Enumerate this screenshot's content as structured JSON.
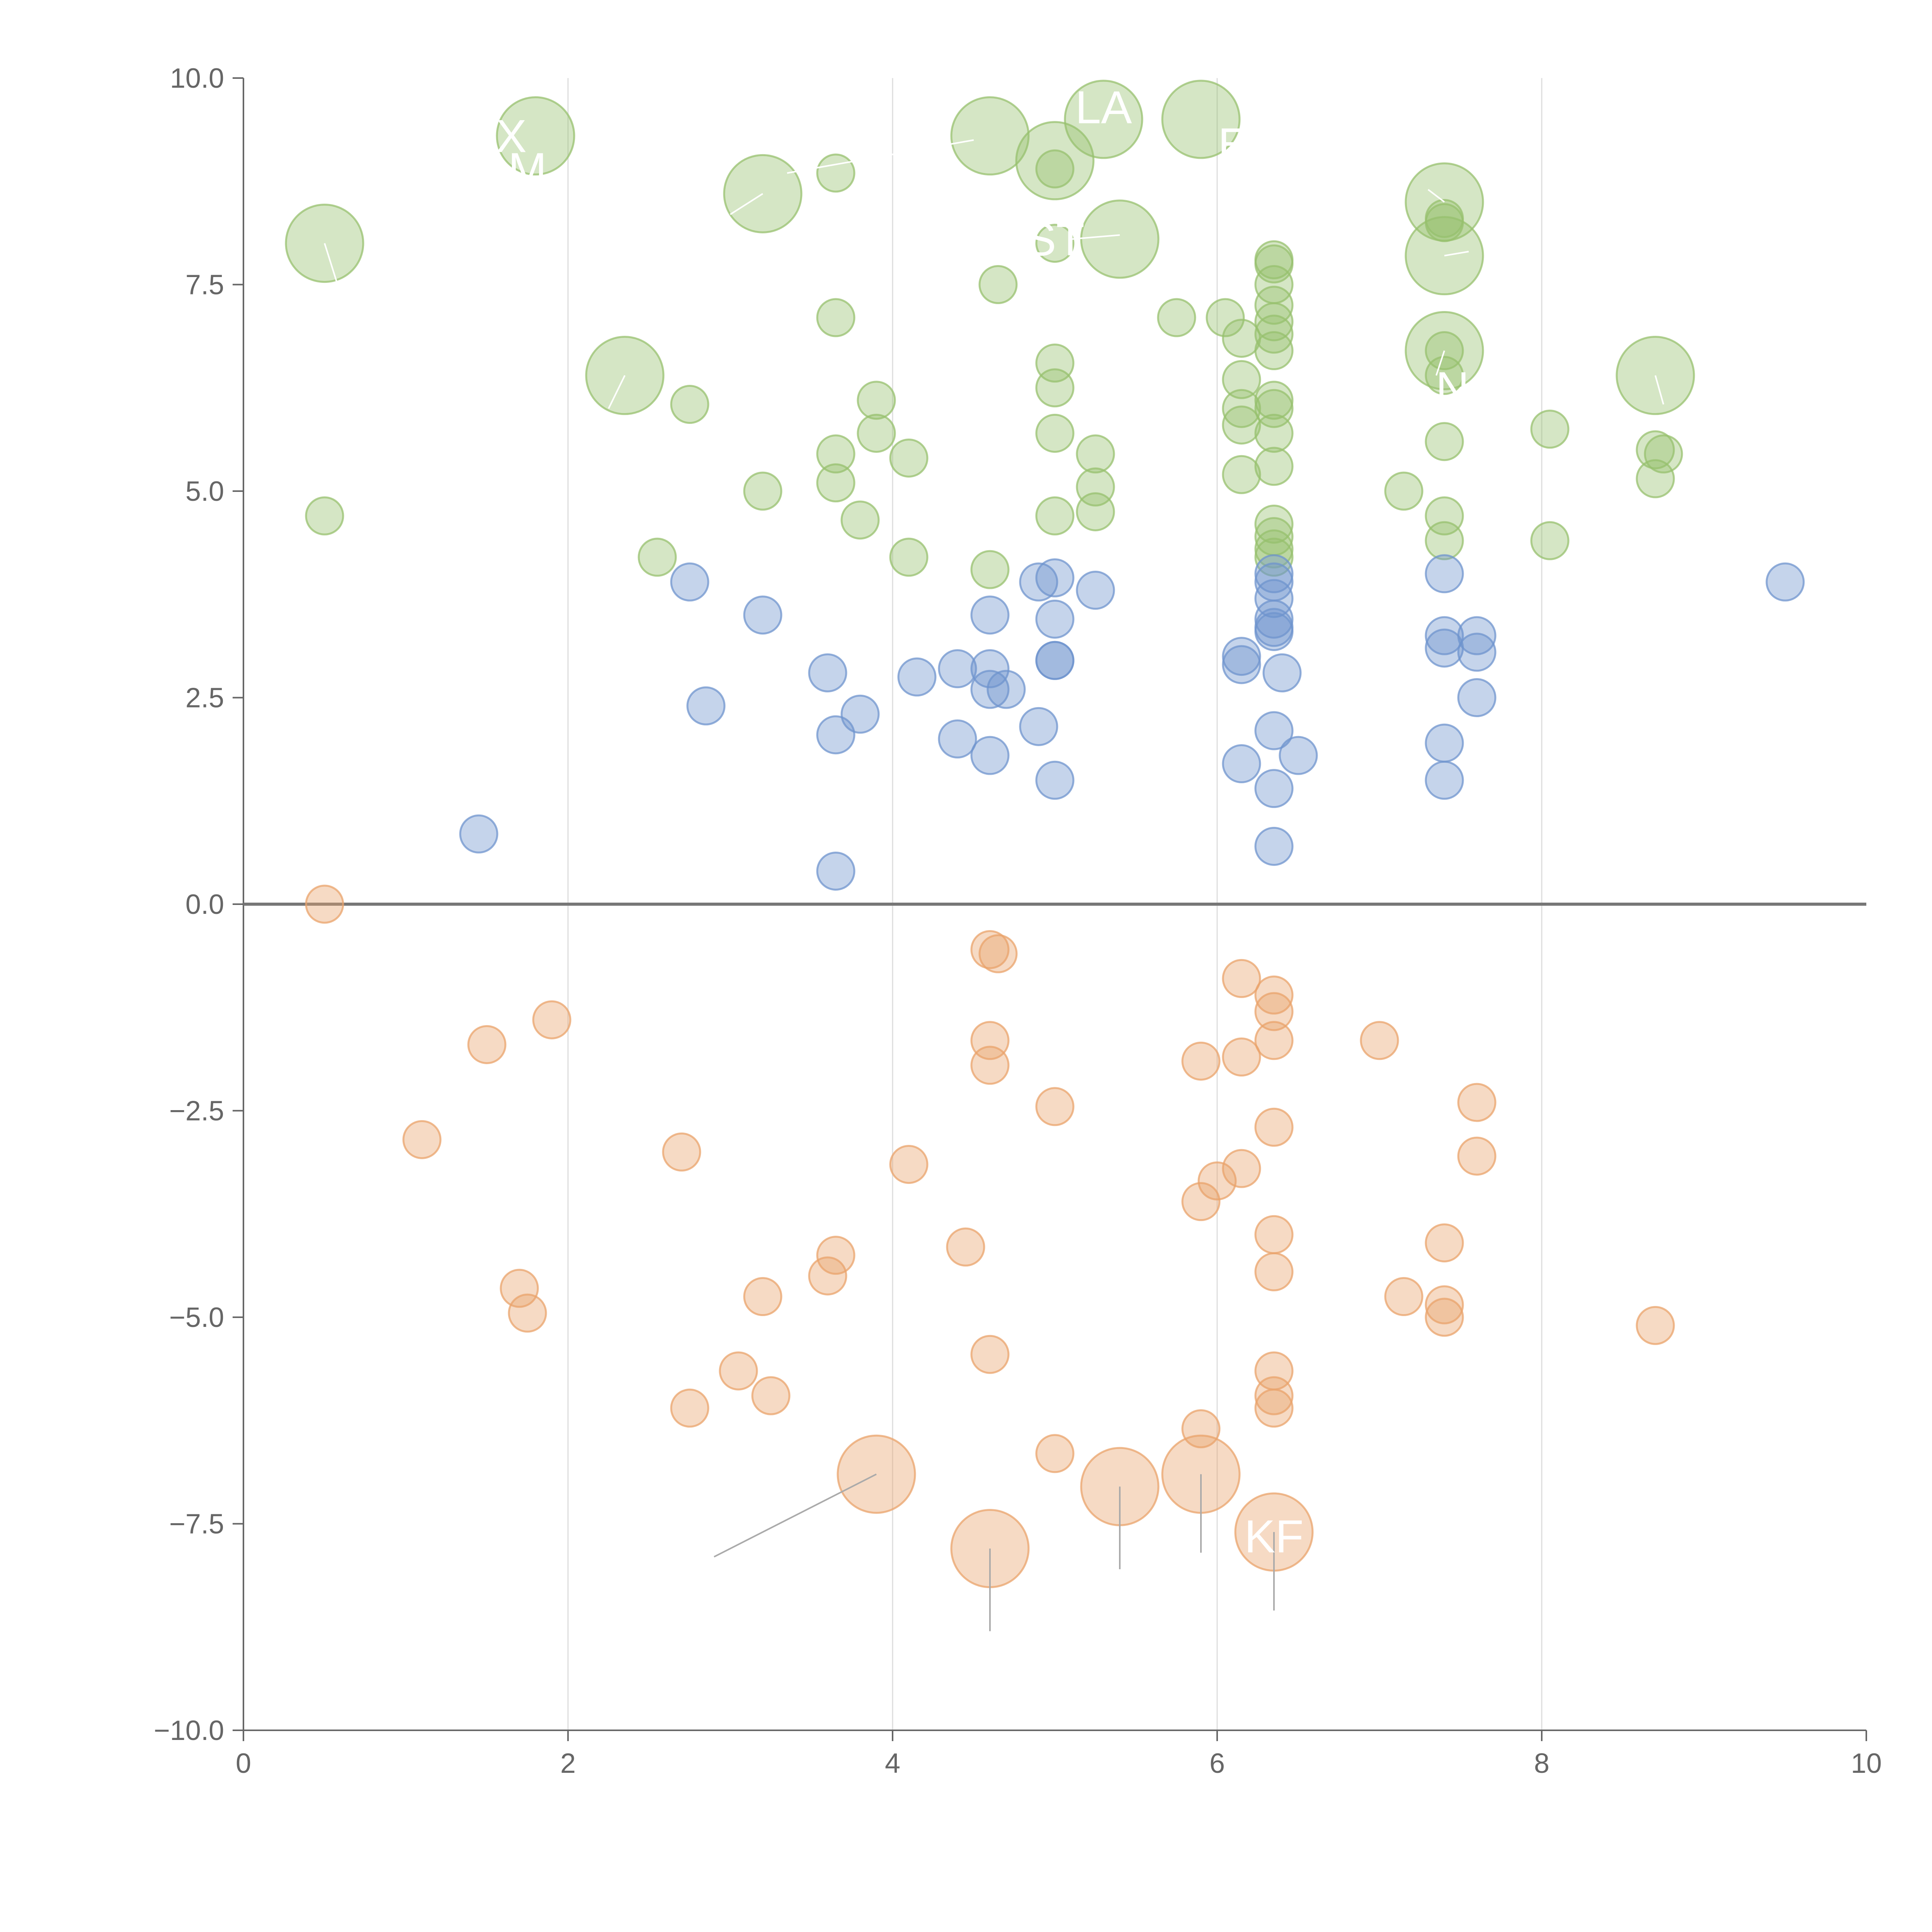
{
  "chart_data": {
    "type": "scatter",
    "title": "",
    "xlabel": "",
    "ylabel": "",
    "xlim": [
      0,
      10
    ],
    "ylim": [
      -10,
      10
    ],
    "x_ticks": [
      "0",
      "2",
      "4",
      "6",
      "8",
      "10"
    ],
    "y_ticks": [
      "10.0",
      "7.5",
      "5.0",
      "2.5",
      "0.0",
      "−2.5",
      "−5.0",
      "−7.5",
      "−10.0"
    ],
    "grid": "vertical",
    "zero_line": true,
    "colors": {
      "green": "#97c06e",
      "blue": "#6f94cd",
      "orange": "#e9a36b",
      "axis": "#666666",
      "grid": "#dddddd",
      "zero": "#777777"
    },
    "point_labels": [
      "X",
      "M",
      "LA",
      "E",
      "ST",
      "N",
      "KF"
    ],
    "series": [
      {
        "name": "green",
        "points": [
          [
            0.5,
            8.0,
            1
          ],
          [
            1.8,
            9.3,
            1
          ],
          [
            3.2,
            8.6,
            1
          ],
          [
            4.6,
            9.3,
            1
          ],
          [
            5.0,
            9.0,
            1
          ],
          [
            5.3,
            9.5,
            1
          ],
          [
            5.9,
            9.5,
            1
          ],
          [
            5.4,
            8.05,
            1
          ],
          [
            7.4,
            8.5,
            1
          ],
          [
            7.4,
            7.85,
            1
          ],
          [
            7.4,
            6.7,
            1
          ],
          [
            2.35,
            6.4,
            1
          ],
          [
            8.7,
            6.4,
            1
          ],
          [
            3.65,
            8.85,
            0
          ],
          [
            5.0,
            8.9,
            0
          ],
          [
            5.0,
            8.0,
            0
          ],
          [
            4.65,
            7.5,
            0
          ],
          [
            3.65,
            7.1,
            0
          ],
          [
            5.75,
            7.1,
            0
          ],
          [
            6.05,
            7.1,
            0
          ],
          [
            6.15,
            6.85,
            0
          ],
          [
            6.35,
            7.8,
            0
          ],
          [
            6.35,
            7.75,
            0
          ],
          [
            6.35,
            7.5,
            0
          ],
          [
            6.35,
            7.25,
            0
          ],
          [
            6.35,
            7.05,
            0
          ],
          [
            6.35,
            6.9,
            0
          ],
          [
            6.35,
            6.7,
            0
          ],
          [
            6.35,
            6.1,
            0
          ],
          [
            6.35,
            6.0,
            0
          ],
          [
            6.35,
            5.7,
            0
          ],
          [
            6.35,
            5.3,
            0
          ],
          [
            6.35,
            4.6,
            0
          ],
          [
            6.35,
            4.45,
            0
          ],
          [
            6.35,
            4.3,
            0
          ],
          [
            6.35,
            4.2,
            0
          ],
          [
            6.15,
            6.35,
            0
          ],
          [
            6.15,
            6.0,
            0
          ],
          [
            6.15,
            5.8,
            0
          ],
          [
            6.15,
            5.2,
            0
          ],
          [
            5.0,
            6.55,
            0
          ],
          [
            5.0,
            6.25,
            0
          ],
          [
            5.0,
            5.7,
            0
          ],
          [
            5.0,
            4.7,
            0
          ],
          [
            5.25,
            5.45,
            0
          ],
          [
            5.25,
            5.05,
            0
          ],
          [
            5.25,
            4.75,
            0
          ],
          [
            2.75,
            6.05,
            0
          ],
          [
            3.9,
            6.1,
            0
          ],
          [
            3.9,
            5.7,
            0
          ],
          [
            3.65,
            5.45,
            0
          ],
          [
            3.65,
            5.1,
            0
          ],
          [
            4.1,
            5.4,
            0
          ],
          [
            3.2,
            5.0,
            0
          ],
          [
            3.8,
            4.65,
            0
          ],
          [
            2.55,
            4.2,
            0
          ],
          [
            4.1,
            4.2,
            0
          ],
          [
            4.6,
            4.05,
            0
          ],
          [
            0.5,
            4.7,
            0
          ],
          [
            7.4,
            8.3,
            0
          ],
          [
            7.4,
            8.25,
            0
          ],
          [
            7.4,
            6.7,
            0
          ],
          [
            7.4,
            6.4,
            0
          ],
          [
            7.4,
            5.6,
            0
          ],
          [
            7.4,
            4.7,
            0
          ],
          [
            7.4,
            4.4,
            0
          ],
          [
            7.15,
            5.0,
            0
          ],
          [
            8.05,
            5.75,
            0
          ],
          [
            8.05,
            4.4,
            0
          ],
          [
            8.7,
            5.5,
            0
          ],
          [
            8.75,
            5.45,
            0
          ],
          [
            8.7,
            5.15,
            0
          ]
        ]
      },
      {
        "name": "blue",
        "points": [
          [
            1.45,
            0.85,
            0
          ],
          [
            2.75,
            3.9,
            0
          ],
          [
            2.85,
            2.4,
            0
          ],
          [
            3.2,
            3.5,
            0
          ],
          [
            3.6,
            2.8,
            0
          ],
          [
            3.65,
            2.05,
            0
          ],
          [
            3.8,
            2.3,
            0
          ],
          [
            3.65,
            0.4,
            0
          ],
          [
            4.15,
            2.75,
            0
          ],
          [
            4.4,
            2.85,
            0
          ],
          [
            4.4,
            2.0,
            0
          ],
          [
            4.6,
            3.5,
            0
          ],
          [
            4.6,
            2.85,
            0
          ],
          [
            4.6,
            2.6,
            0
          ],
          [
            4.6,
            1.8,
            0
          ],
          [
            4.7,
            2.6,
            0
          ],
          [
            4.9,
            3.9,
            0
          ],
          [
            4.9,
            2.15,
            0
          ],
          [
            5.0,
            3.95,
            0
          ],
          [
            5.0,
            3.45,
            0
          ],
          [
            5.0,
            2.95,
            0
          ],
          [
            5.0,
            2.95,
            0
          ],
          [
            5.0,
            1.5,
            0
          ],
          [
            5.25,
            3.8,
            0
          ],
          [
            6.15,
            3.0,
            0
          ],
          [
            6.15,
            2.9,
            0
          ],
          [
            6.15,
            1.7,
            0
          ],
          [
            6.35,
            4.0,
            0
          ],
          [
            6.35,
            3.9,
            0
          ],
          [
            6.35,
            3.7,
            0
          ],
          [
            6.35,
            3.45,
            0
          ],
          [
            6.35,
            3.35,
            0
          ],
          [
            6.35,
            3.3,
            0
          ],
          [
            6.4,
            2.8,
            0
          ],
          [
            6.35,
            2.1,
            0
          ],
          [
            6.35,
            1.4,
            0
          ],
          [
            6.5,
            1.8,
            0
          ],
          [
            6.35,
            0.7,
            0
          ],
          [
            7.4,
            4.0,
            0
          ],
          [
            7.4,
            3.25,
            0
          ],
          [
            7.4,
            3.1,
            0
          ],
          [
            7.6,
            3.25,
            0
          ],
          [
            7.6,
            3.05,
            0
          ],
          [
            7.6,
            2.5,
            0
          ],
          [
            7.4,
            1.95,
            0
          ],
          [
            7.4,
            1.5,
            0
          ],
          [
            9.5,
            3.9,
            0
          ]
        ]
      },
      {
        "name": "orange",
        "points": [
          [
            0.5,
            0.0,
            0
          ],
          [
            1.1,
            -2.85,
            0
          ],
          [
            1.5,
            -1.7,
            0
          ],
          [
            1.9,
            -1.4,
            0
          ],
          [
            1.7,
            -4.65,
            0
          ],
          [
            1.75,
            -4.95,
            0
          ],
          [
            2.7,
            -3.0,
            0
          ],
          [
            2.75,
            -6.1,
            0
          ],
          [
            3.05,
            -5.65,
            0
          ],
          [
            3.2,
            -4.75,
            0
          ],
          [
            3.25,
            -5.95,
            0
          ],
          [
            3.6,
            -4.5,
            0
          ],
          [
            3.65,
            -4.25,
            0
          ],
          [
            4.1,
            -3.15,
            0
          ],
          [
            4.45,
            -4.15,
            0
          ],
          [
            4.6,
            -0.55,
            0
          ],
          [
            4.65,
            -0.6,
            0
          ],
          [
            4.6,
            -1.65,
            0
          ],
          [
            4.6,
            -1.95,
            0
          ],
          [
            4.6,
            -5.45,
            0
          ],
          [
            5.0,
            -2.45,
            0
          ],
          [
            5.0,
            -6.65,
            0
          ],
          [
            5.9,
            -1.9,
            0
          ],
          [
            6.0,
            -3.35,
            0
          ],
          [
            5.9,
            -3.6,
            0
          ],
          [
            5.9,
            -6.35,
            0
          ],
          [
            6.15,
            -0.9,
            0
          ],
          [
            6.15,
            -1.85,
            0
          ],
          [
            6.15,
            -3.2,
            0
          ],
          [
            6.35,
            -1.1,
            0
          ],
          [
            6.35,
            -1.3,
            0
          ],
          [
            6.35,
            -1.65,
            0
          ],
          [
            6.35,
            -2.7,
            0
          ],
          [
            6.35,
            -4.0,
            0
          ],
          [
            6.35,
            -4.45,
            0
          ],
          [
            6.35,
            -5.65,
            0
          ],
          [
            6.35,
            -5.95,
            0
          ],
          [
            6.35,
            -6.1,
            0
          ],
          [
            7.0,
            -1.65,
            0
          ],
          [
            7.15,
            -4.75,
            0
          ],
          [
            7.4,
            -4.1,
            0
          ],
          [
            7.4,
            -4.85,
            0
          ],
          [
            7.4,
            -5.0,
            0
          ],
          [
            7.6,
            -2.4,
            0
          ],
          [
            7.6,
            -3.05,
            0
          ],
          [
            8.7,
            -5.1,
            0
          ],
          [
            3.9,
            -6.9,
            1
          ],
          [
            4.6,
            -7.8,
            1
          ],
          [
            5.4,
            -7.05,
            1
          ],
          [
            5.9,
            -6.9,
            1
          ],
          [
            6.35,
            -7.6,
            1
          ]
        ]
      }
    ],
    "annotations": [
      {
        "text": "X",
        "x": 1.65,
        "y": 9.3
      },
      {
        "text": "M",
        "x": 1.75,
        "y": 8.9
      },
      {
        "text": "LA",
        "x": 5.3,
        "y": 9.65
      },
      {
        "text": "E",
        "x": 6.1,
        "y": 9.2
      },
      {
        "text": "ST",
        "x": 5.0,
        "y": 8.05
      },
      {
        "text": "N",
        "x": 7.45,
        "y": 6.25
      },
      {
        "text": "KF",
        "x": 6.35,
        "y": -7.65
      }
    ],
    "leaders": [
      [
        3.9,
        -6.9,
        2.9,
        -7.9
      ],
      [
        4.6,
        -7.8,
        4.6,
        -8.8
      ],
      [
        5.4,
        -7.05,
        5.4,
        -8.05
      ],
      [
        5.9,
        -6.9,
        5.9,
        -7.85
      ],
      [
        6.35,
        -7.6,
        6.35,
        -8.55
      ],
      [
        0.5,
        8.0,
        0.58,
        7.5
      ],
      [
        3.2,
        8.6,
        3.0,
        8.35
      ],
      [
        3.35,
        8.85,
        4.5,
        9.25
      ],
      [
        5.1,
        8.05,
        5.4,
        8.1
      ],
      [
        7.4,
        8.5,
        7.3,
        8.65
      ],
      [
        7.4,
        7.85,
        7.55,
        7.9
      ],
      [
        2.35,
        6.4,
        2.25,
        6.0
      ],
      [
        8.7,
        6.4,
        8.75,
        6.05
      ],
      [
        7.4,
        6.7,
        7.35,
        6.4
      ]
    ]
  }
}
